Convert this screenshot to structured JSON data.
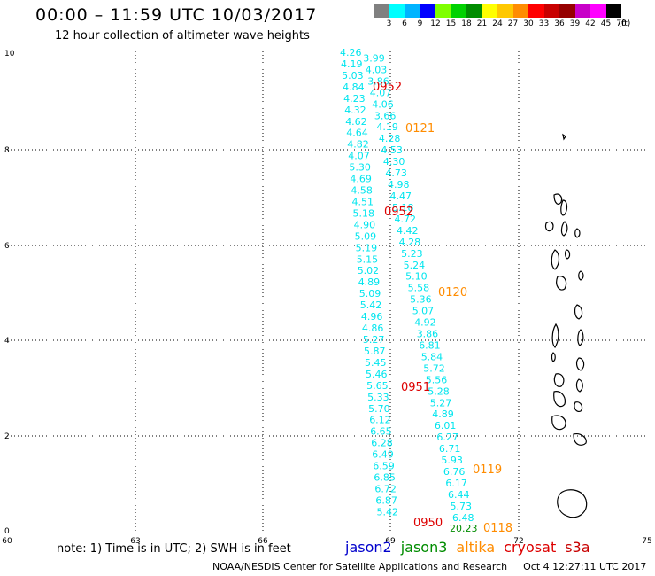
{
  "header": {
    "title": "00:00 – 11:59 UTC 10/03/2017",
    "subtitle": "12 hour collection of altimeter wave heights"
  },
  "legend": {
    "colors": [
      "#808080",
      "#00ffff",
      "#00b4ff",
      "#0000ff",
      "#7fff00",
      "#00d200",
      "#008c00",
      "#ffff00",
      "#ffc800",
      "#ff8c00",
      "#ff0000",
      "#c80000",
      "#960000",
      "#c800c8",
      "#ff00ff",
      "#000000"
    ],
    "labels": [
      "3",
      "6",
      "9",
      "12",
      "15",
      "18",
      "21",
      "24",
      "27",
      "30",
      "33",
      "36",
      "39",
      "42",
      "45",
      "70",
      "(ft)"
    ]
  },
  "axes": {
    "x_ticks": [
      "60",
      "63",
      "66",
      "69",
      "72",
      "75"
    ],
    "y_ticks": [
      "0",
      "2",
      "4",
      "6",
      "8",
      "10"
    ]
  },
  "track": {
    "color": "#00e5ee",
    "values": [
      "4.26",
      "3.99",
      "4.19",
      "4.03",
      "5.03",
      "3.86",
      "4.84",
      "4.07",
      "4.23",
      "4.06",
      "4.32",
      "3.66",
      "4.62",
      "4.19",
      "4.64",
      "4.28",
      "4.82",
      "4.53",
      "4.07",
      "4.30",
      "5.30",
      "4.73",
      "4.69",
      "4.98",
      "4.58",
      "4.47",
      "4.51",
      "5.18",
      "5.18",
      "4.72",
      "4.90",
      "4.42",
      "5.09",
      "4.28",
      "5.19",
      "5.23",
      "5.15",
      "5.24",
      "5.02",
      "5.10",
      "4.89",
      "5.58",
      "5.09",
      "5.36",
      "5.42",
      "5.07",
      "4.96",
      "4.92",
      "4.86",
      "3.86",
      "5.27",
      "6.81",
      "5.87",
      "5.84",
      "5.45",
      "5.72",
      "5.46",
      "5.56",
      "5.65",
      "5.28",
      "5.33",
      "5.27",
      "5.70",
      "4.89",
      "6.12",
      "6.01",
      "6.65",
      "6.27",
      "6.28",
      "6.71",
      "6.49",
      "5.93",
      "6.59",
      "6.76",
      "6.85",
      "6.17",
      "6.72",
      "6.44",
      "6.87",
      "5.73",
      "5.42",
      "6.48",
      "20.23"
    ]
  },
  "time_labels": [
    {
      "text": "0952",
      "color": "#dd0000"
    },
    {
      "text": "0121",
      "color": "#ff8c00"
    },
    {
      "text": "0952",
      "color": "#dd0000"
    },
    {
      "text": "0120",
      "color": "#ff8c00"
    },
    {
      "text": "0951",
      "color": "#dd0000"
    },
    {
      "text": "0119",
      "color": "#ff8c00"
    },
    {
      "text": "0950",
      "color": "#dd0000"
    },
    {
      "text": "0118",
      "color": "#ff8c00"
    }
  ],
  "note": "note:  1) Time is in UTC;  2) SWH is in feet",
  "satellites": [
    {
      "name": "jason2",
      "color": "#0000cc"
    },
    {
      "name": "jason3",
      "color": "#008c00"
    },
    {
      "name": "altika",
      "color": "#ff8c00"
    },
    {
      "name": "cryosat",
      "color": "#dd0000"
    },
    {
      "name": "s3a",
      "color": "#c80000"
    }
  ],
  "footer": {
    "center": "NOAA/NESDIS Center for Satellite Applications and Research",
    "timestamp": "Oct  4 12:27:11 UTC 2017"
  }
}
